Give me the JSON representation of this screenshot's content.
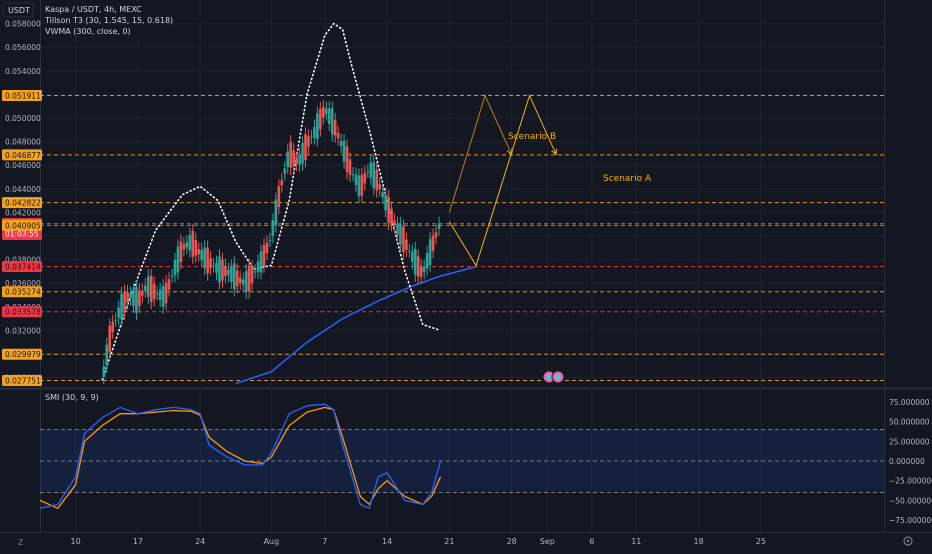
{
  "header": {
    "currency": "USDT",
    "title": "Kaspa / USDT, 4h, MEXC",
    "indicators": [
      "Tillson T3 (30, 1.545, 15, 0.618)",
      "VWMA (300, close, 0)"
    ],
    "smi_label": "SMI (30, 9, 9)",
    "timezone_icon": "Z",
    "settings_icon": "gear-icon"
  },
  "colors": {
    "bg": "#131722",
    "up": "#26a69a",
    "down": "#ef5350",
    "level_orange": "#f7a21b",
    "level_red": "#f23645",
    "vwma": "#2962ff",
    "smi": "#2962ff",
    "smi_signal": "#ff9800",
    "scenario": "#f5b301"
  },
  "price_axis": {
    "ticks": [
      "0.058000",
      "0.056000",
      "0.054000",
      "0.052000",
      "0.050000",
      "0.048000",
      "0.046000",
      "0.044000",
      "0.042000",
      "0.040000",
      "0.038000",
      "0.036000",
      "0.034000",
      "0.032000",
      "0.030000",
      "0.028000"
    ]
  },
  "levels": [
    {
      "label": "0.051911",
      "value": 0.051911,
      "color": "#f7a21b"
    },
    {
      "label": "0.046877",
      "value": 0.046877,
      "color": "#f7a21b"
    },
    {
      "label": "0.042822",
      "value": 0.042822,
      "color": "#f7a21b"
    },
    {
      "label": "0.041058",
      "value": 0.041058,
      "color": "#f23645",
      "current": true,
      "countdown": "01:03:55"
    },
    {
      "label": "0.040905",
      "value": 0.040905,
      "color": "#f7a21b"
    },
    {
      "label": "0.037414",
      "value": 0.037414,
      "color": "#f23645"
    },
    {
      "label": "0.035274",
      "value": 0.035274,
      "color": "#f7a21b"
    },
    {
      "label": "0.033578",
      "value": 0.033578,
      "color": "#f23645"
    },
    {
      "label": "0.029979",
      "value": 0.029979,
      "color": "#f7a21b"
    },
    {
      "label": "0.027751",
      "value": 0.027751,
      "color": "#f7a21b"
    }
  ],
  "annotations": {
    "scenario_a": "Scenario A",
    "scenario_b": "Scenario B"
  },
  "smi_axis": {
    "ticks": [
      "75.000000",
      "50.000000",
      "25.000000",
      "0.000000",
      "−25.000000",
      "−50.000000",
      "−75.000000"
    ]
  },
  "time_axis": {
    "labels": [
      "10",
      "17",
      "24",
      "Aug",
      "7",
      "14",
      "21",
      "28",
      "Sep",
      "6",
      "11",
      "18",
      "25"
    ]
  },
  "chart_data": [
    {
      "type": "candlestick",
      "title": "Kaspa / USDT, 4h, MEXC",
      "ylim": [
        0.0272,
        0.06
      ],
      "x_start": "Jul 6",
      "x_end": "Sep 26",
      "series": [
        {
          "name": "Kaspa / USDT",
          "points": [
            [
              "Jul 13",
              0.0278
            ],
            [
              "Jul 14",
              0.032
            ],
            [
              "Jul 15",
              0.0338
            ],
            [
              "Jul 16",
              0.035
            ],
            [
              "Jul 17",
              0.0345
            ],
            [
              "Jul 18",
              0.0358
            ],
            [
              "Jul 19",
              0.0352
            ],
            [
              "Jul 20",
              0.0348
            ],
            [
              "Jul 21",
              0.037
            ],
            [
              "Jul 22",
              0.039
            ],
            [
              "Jul 23",
              0.0395
            ],
            [
              "Jul 24",
              0.0385
            ],
            [
              "Jul 25",
              0.0378
            ],
            [
              "Jul 26",
              0.0372
            ],
            [
              "Jul 27",
              0.037
            ],
            [
              "Jul 28",
              0.0365
            ],
            [
              "Jul 29",
              0.036
            ],
            [
              "Jul 30",
              0.0368
            ],
            [
              "Jul 31",
              0.038
            ],
            [
              "Aug 1",
              0.04
            ],
            [
              "Aug 2",
              0.044
            ],
            [
              "Aug 3",
              0.047
            ],
            [
              "Aug 4",
              0.0462
            ],
            [
              "Aug 5",
              0.0478
            ],
            [
              "Aug 6",
              0.049
            ],
            [
              "Aug 7",
              0.0508
            ],
            [
              "Aug 8",
              0.0495
            ],
            [
              "Aug 9",
              0.0475
            ],
            [
              "Aug 10",
              0.0455
            ],
            [
              "Aug 11",
              0.044
            ],
            [
              "Aug 12",
              0.0458
            ],
            [
              "Aug 13",
              0.0445
            ],
            [
              "Aug 14",
              0.0425
            ],
            [
              "Aug 15",
              0.0408
            ],
            [
              "Aug 16",
              0.0395
            ],
            [
              "Aug 17",
              0.038
            ],
            [
              "Aug 18",
              0.0368
            ],
            [
              "Aug 19",
              0.039
            ],
            [
              "Aug 20",
              0.0412
            ]
          ]
        },
        {
          "name": "Tillson T3 (30, 1.545, 15, 0.618)",
          "points": [
            [
              "Jul 13",
              0.0278
            ],
            [
              "Jul 16",
              0.0345
            ],
            [
              "Jul 19",
              0.0405
            ],
            [
              "Jul 22",
              0.0435
            ],
            [
              "Jul 24",
              0.0442
            ],
            [
              "Jul 26",
              0.043
            ],
            [
              "Jul 28",
              0.0395
            ],
            [
              "Jul 30",
              0.0372
            ],
            [
              "Aug 1",
              0.0375
            ],
            [
              "Aug 3",
              0.043
            ],
            [
              "Aug 5",
              0.052
            ],
            [
              "Aug 7",
              0.057
            ],
            [
              "Aug 8",
              0.058
            ],
            [
              "Aug 9",
              0.0575
            ],
            [
              "Aug 10",
              0.0545
            ],
            [
              "Aug 12",
              0.049
            ],
            [
              "Aug 14",
              0.043
            ],
            [
              "Aug 16",
              0.037
            ],
            [
              "Aug 18",
              0.0325
            ],
            [
              "Aug 20",
              0.032
            ]
          ]
        },
        {
          "name": "VWMA (300, close, 0)",
          "points": [
            [
              "Jul 28",
              0.0275
            ],
            [
              "Aug 1",
              0.0285
            ],
            [
              "Aug 5",
              0.031
            ],
            [
              "Aug 9",
              0.033
            ],
            [
              "Aug 13",
              0.0345
            ],
            [
              "Aug 17",
              0.0358
            ],
            [
              "Aug 20",
              0.0366
            ],
            [
              "Aug 24",
              0.0374
            ]
          ]
        }
      ],
      "scenarios": [
        {
          "name": "Scenario A",
          "points": [
            [
              "Aug 21",
              0.0412
            ],
            [
              "Aug 24",
              0.0375
            ],
            [
              "Aug 30",
              0.0519
            ],
            [
              "Sep 2",
              0.0469
            ]
          ]
        },
        {
          "name": "Scenario B",
          "points": [
            [
              "Aug 21",
              0.042
            ],
            [
              "Aug 25",
              0.0519
            ],
            [
              "Aug 28",
              0.0469
            ]
          ]
        }
      ]
    },
    {
      "type": "line",
      "title": "SMI (30, 9, 9)",
      "ylim": [
        -90,
        90
      ],
      "levels": [
        40,
        -40
      ],
      "series": [
        {
          "name": "SMI",
          "points": [
            [
              "Jul 6",
              -60
            ],
            [
              "Jul 8",
              -55
            ],
            [
              "Jul 10",
              -20
            ],
            [
              "Jul 11",
              35
            ],
            [
              "Jul 13",
              55
            ],
            [
              "Jul 15",
              68
            ],
            [
              "Jul 17",
              60
            ],
            [
              "Jul 19",
              65
            ],
            [
              "Jul 21",
              68
            ],
            [
              "Jul 23",
              65
            ],
            [
              "Jul 24",
              60
            ],
            [
              "Jul 25",
              20
            ],
            [
              "Jul 27",
              5
            ],
            [
              "Jul 29",
              -5
            ],
            [
              "Jul 31",
              -5
            ],
            [
              "Aug 1",
              10
            ],
            [
              "Aug 3",
              60
            ],
            [
              "Aug 5",
              70
            ],
            [
              "Aug 7",
              72
            ],
            [
              "Aug 8",
              65
            ],
            [
              "Aug 9",
              20
            ],
            [
              "Aug 11",
              -55
            ],
            [
              "Aug 12",
              -60
            ],
            [
              "Aug 13",
              -20
            ],
            [
              "Aug 14",
              -15
            ],
            [
              "Aug 16",
              -50
            ],
            [
              "Aug 18",
              -55
            ],
            [
              "Aug 19",
              -40
            ],
            [
              "Aug 20",
              0
            ]
          ]
        },
        {
          "name": "Signal",
          "points": [
            [
              "Jul 6",
              -50
            ],
            [
              "Jul 8",
              -60
            ],
            [
              "Jul 10",
              -30
            ],
            [
              "Jul 11",
              25
            ],
            [
              "Jul 13",
              45
            ],
            [
              "Jul 15",
              60
            ],
            [
              "Jul 17",
              60
            ],
            [
              "Jul 19",
              62
            ],
            [
              "Jul 21",
              64
            ],
            [
              "Jul 23",
              63
            ],
            [
              "Jul 24",
              58
            ],
            [
              "Jul 25",
              30
            ],
            [
              "Jul 27",
              12
            ],
            [
              "Jul 29",
              0
            ],
            [
              "Jul 31",
              -3
            ],
            [
              "Aug 1",
              5
            ],
            [
              "Aug 3",
              45
            ],
            [
              "Aug 5",
              62
            ],
            [
              "Aug 7",
              68
            ],
            [
              "Aug 8",
              65
            ],
            [
              "Aug 9",
              30
            ],
            [
              "Aug 11",
              -45
            ],
            [
              "Aug 12",
              -55
            ],
            [
              "Aug 13",
              -35
            ],
            [
              "Aug 14",
              -25
            ],
            [
              "Aug 16",
              -45
            ],
            [
              "Aug 18",
              -55
            ],
            [
              "Aug 19",
              -45
            ],
            [
              "Aug 20",
              -20
            ]
          ]
        }
      ]
    }
  ]
}
